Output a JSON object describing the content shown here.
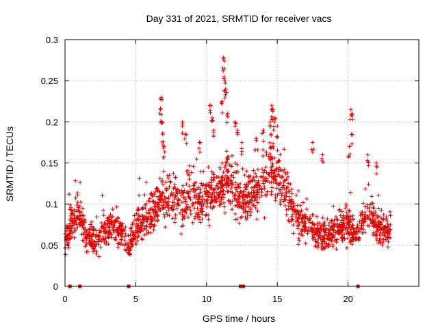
{
  "chart_data": {
    "type": "scatter",
    "title": "Day 331 of 2021, SRMTID for receiver vacs",
    "xlabel": "GPS time / hours",
    "ylabel": "SRMTID / TECUs",
    "xlim": [
      0,
      25
    ],
    "ylim": [
      0,
      0.3
    ],
    "xticks": [
      0,
      5,
      10,
      15,
      20
    ],
    "xtick_labels": [
      "0",
      "5",
      "10",
      "15",
      "20"
    ],
    "yticks": [
      0,
      0.05,
      0.1,
      0.15,
      0.2,
      0.25,
      0.3
    ],
    "ytick_labels": [
      "0",
      "0.05",
      "0.1",
      "0.15",
      "0.2",
      "0.25",
      "0.3"
    ],
    "grid": true,
    "marker": "+",
    "color": "#e00000",
    "profile": [
      [
        0.0,
        0.055
      ],
      [
        0.5,
        0.08
      ],
      [
        1.0,
        0.09
      ],
      [
        1.5,
        0.06
      ],
      [
        2.0,
        0.055
      ],
      [
        2.5,
        0.06
      ],
      [
        3.0,
        0.07
      ],
      [
        3.5,
        0.075
      ],
      [
        4.0,
        0.065
      ],
      [
        4.5,
        0.05
      ],
      [
        5.0,
        0.07
      ],
      [
        5.5,
        0.08
      ],
      [
        6.0,
        0.085
      ],
      [
        6.5,
        0.1
      ],
      [
        7.0,
        0.105
      ],
      [
        7.5,
        0.11
      ],
      [
        8.0,
        0.1
      ],
      [
        8.5,
        0.105
      ],
      [
        9.0,
        0.11
      ],
      [
        9.5,
        0.1
      ],
      [
        10.0,
        0.11
      ],
      [
        10.5,
        0.115
      ],
      [
        11.0,
        0.12
      ],
      [
        11.5,
        0.13
      ],
      [
        12.0,
        0.115
      ],
      [
        12.5,
        0.1
      ],
      [
        13.0,
        0.115
      ],
      [
        13.5,
        0.12
      ],
      [
        14.0,
        0.13
      ],
      [
        14.5,
        0.145
      ],
      [
        15.0,
        0.14
      ],
      [
        15.5,
        0.12
      ],
      [
        16.0,
        0.095
      ],
      [
        16.5,
        0.08
      ],
      [
        17.0,
        0.075
      ],
      [
        17.5,
        0.07
      ],
      [
        18.0,
        0.065
      ],
      [
        18.5,
        0.06
      ],
      [
        19.0,
        0.065
      ],
      [
        19.5,
        0.07
      ],
      [
        20.0,
        0.075
      ],
      [
        20.5,
        0.065
      ],
      [
        21.0,
        0.08
      ],
      [
        21.5,
        0.09
      ],
      [
        22.0,
        0.075
      ],
      [
        22.5,
        0.065
      ],
      [
        23.0,
        0.07
      ]
    ],
    "spikes": [
      [
        6.8,
        0.23
      ],
      [
        6.75,
        0.215
      ],
      [
        6.85,
        0.2
      ],
      [
        6.9,
        0.185
      ],
      [
        7.0,
        0.17
      ],
      [
        8.3,
        0.2
      ],
      [
        8.5,
        0.185
      ],
      [
        9.5,
        0.175
      ],
      [
        10.3,
        0.22
      ],
      [
        10.4,
        0.205
      ],
      [
        10.5,
        0.19
      ],
      [
        11.2,
        0.278
      ],
      [
        11.25,
        0.265
      ],
      [
        11.3,
        0.25
      ],
      [
        11.35,
        0.24
      ],
      [
        11.1,
        0.225
      ],
      [
        11.5,
        0.21
      ],
      [
        12.0,
        0.2
      ],
      [
        12.2,
        0.19
      ],
      [
        12.5,
        0.175
      ],
      [
        13.5,
        0.18
      ],
      [
        14.0,
        0.19
      ],
      [
        14.6,
        0.22
      ],
      [
        14.7,
        0.215
      ],
      [
        14.8,
        0.205
      ],
      [
        14.5,
        0.2
      ],
      [
        15.0,
        0.195
      ],
      [
        17.5,
        0.175
      ],
      [
        18.2,
        0.16
      ],
      [
        20.2,
        0.215
      ],
      [
        20.3,
        0.21
      ],
      [
        20.25,
        0.185
      ],
      [
        20.1,
        0.17
      ],
      [
        21.4,
        0.16
      ],
      [
        22.0,
        0.15
      ]
    ],
    "gap_markers": [
      0.35,
      1.05,
      4.5,
      12.4,
      12.6,
      20.7
    ],
    "n_points": 1900
  }
}
